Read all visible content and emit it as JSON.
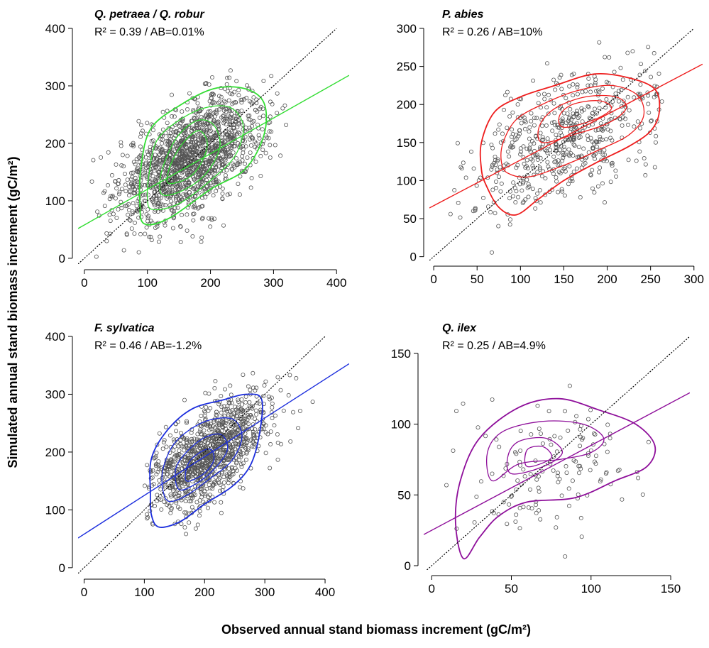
{
  "figure": {
    "xlabel": "Observed annual stand biomass increment (gC/m²)",
    "ylabel": "Simulated annual stand biomass increment (gC/m²)"
  },
  "chart_data": [
    {
      "type": "scatter",
      "title": "Q. petraea / Q. robur",
      "stat": "R² = 0.39 / AB=0.01%",
      "color": "#33dd33",
      "xlim": [
        -10,
        420
      ],
      "ylim": [
        -10,
        400
      ],
      "xticks": [
        0,
        100,
        200,
        300,
        400
      ],
      "yticks": [
        0,
        100,
        200,
        300,
        400
      ],
      "regression": {
        "slope": 0.62,
        "intercept": 58
      },
      "cloud": {
        "n": 1500,
        "cx": 170,
        "cy": 175,
        "sx": 58,
        "sy": 55,
        "rho": 0.55,
        "xmin": 10,
        "xmax": 400,
        "ymin": 0,
        "ymax": 370
      },
      "contours": [
        [
          [
            95,
            60
          ],
          [
            135,
            70
          ],
          [
            200,
            120
          ],
          [
            255,
            155
          ],
          [
            285,
            215
          ],
          [
            285,
            270
          ],
          [
            255,
            295
          ],
          [
            205,
            295
          ],
          [
            150,
            265
          ],
          [
            105,
            225
          ],
          [
            90,
            160
          ],
          [
            88,
            95
          ]
        ],
        [
          [
            108,
            85
          ],
          [
            150,
            95
          ],
          [
            205,
            140
          ],
          [
            240,
            180
          ],
          [
            252,
            230
          ],
          [
            232,
            262
          ],
          [
            192,
            262
          ],
          [
            150,
            240
          ],
          [
            115,
            205
          ],
          [
            103,
            150
          ],
          [
            100,
            105
          ]
        ],
        [
          [
            125,
            110
          ],
          [
            160,
            120
          ],
          [
            195,
            150
          ],
          [
            215,
            195
          ],
          [
            205,
            232
          ],
          [
            180,
            240
          ],
          [
            150,
            215
          ],
          [
            130,
            175
          ],
          [
            120,
            135
          ]
        ],
        [
          [
            135,
            130
          ],
          [
            165,
            140
          ],
          [
            185,
            165
          ],
          [
            195,
            200
          ],
          [
            182,
            222
          ],
          [
            160,
            205
          ],
          [
            142,
            175
          ],
          [
            132,
            145
          ]
        ]
      ]
    },
    {
      "type": "scatter",
      "title": "P. abies",
      "stat": "R² = 0.26 / AB=10%",
      "color": "#ee1c1c",
      "xlim": [
        -5,
        310
      ],
      "ylim": [
        -5,
        300
      ],
      "xticks": [
        0,
        50,
        100,
        150,
        200,
        250,
        300
      ],
      "yticks": [
        0,
        50,
        100,
        150,
        200,
        250,
        300
      ],
      "regression": {
        "slope": 0.6,
        "intercept": 67
      },
      "cloud": {
        "n": 550,
        "cx": 155,
        "cy": 155,
        "sx": 55,
        "sy": 48,
        "rho": 0.5,
        "xmin": 5,
        "xmax": 265,
        "ymin": 0,
        "ymax": 285
      },
      "contours": [
        [
          [
            60,
            95
          ],
          [
            75,
            65
          ],
          [
            95,
            55
          ],
          [
            120,
            75
          ],
          [
            150,
            100
          ],
          [
            190,
            125
          ],
          [
            225,
            145
          ],
          [
            250,
            165
          ],
          [
            260,
            190
          ],
          [
            255,
            220
          ],
          [
            225,
            235
          ],
          [
            185,
            240
          ],
          [
            140,
            225
          ],
          [
            100,
            210
          ],
          [
            70,
            190
          ],
          [
            55,
            150
          ],
          [
            55,
            115
          ]
        ],
        [
          [
            85,
            110
          ],
          [
            110,
            105
          ],
          [
            150,
            120
          ],
          [
            190,
            140
          ],
          [
            225,
            160
          ],
          [
            242,
            185
          ],
          [
            235,
            212
          ],
          [
            205,
            225
          ],
          [
            165,
            218
          ],
          [
            125,
            200
          ],
          [
            95,
            180
          ],
          [
            80,
            150
          ],
          [
            78,
            125
          ]
        ],
        [
          [
            125,
            150
          ],
          [
            160,
            160
          ],
          [
            200,
            175
          ],
          [
            222,
            195
          ],
          [
            210,
            210
          ],
          [
            175,
            210
          ],
          [
            140,
            195
          ],
          [
            122,
            172
          ]
        ],
        [
          [
            150,
            170
          ],
          [
            185,
            180
          ],
          [
            205,
            195
          ],
          [
            190,
            205
          ],
          [
            160,
            200
          ],
          [
            145,
            185
          ]
        ]
      ]
    },
    {
      "type": "scatter",
      "title": "F. sylvatica",
      "stat": "R² = 0.46 / AB=-1.2%",
      "color": "#1c2edd",
      "xlim": [
        -10,
        440
      ],
      "ylim": [
        -10,
        400
      ],
      "xticks": [
        0,
        100,
        200,
        300,
        400
      ],
      "yticks": [
        0,
        100,
        200,
        300,
        400
      ],
      "regression": {
        "slope": 0.67,
        "intercept": 58
      },
      "cloud": {
        "n": 1100,
        "cx": 205,
        "cy": 195,
        "sx": 52,
        "sy": 50,
        "rho": 0.6,
        "xmin": 100,
        "xmax": 440,
        "ymin": 5,
        "ymax": 375
      },
      "contours": [
        [
          [
            125,
            70
          ],
          [
            160,
            80
          ],
          [
            200,
            110
          ],
          [
            245,
            140
          ],
          [
            275,
            175
          ],
          [
            290,
            225
          ],
          [
            295,
            290
          ],
          [
            270,
            300
          ],
          [
            230,
            290
          ],
          [
            180,
            275
          ],
          [
            140,
            240
          ],
          [
            112,
            190
          ],
          [
            110,
            130
          ],
          [
            112,
            90
          ]
        ],
        [
          [
            140,
            115
          ],
          [
            170,
            125
          ],
          [
            210,
            155
          ],
          [
            245,
            185
          ],
          [
            262,
            225
          ],
          [
            250,
            255
          ],
          [
            220,
            258
          ],
          [
            185,
            245
          ],
          [
            150,
            215
          ],
          [
            132,
            175
          ],
          [
            130,
            140
          ]
        ],
        [
          [
            158,
            135
          ],
          [
            190,
            148
          ],
          [
            220,
            175
          ],
          [
            238,
            205
          ],
          [
            228,
            230
          ],
          [
            200,
            225
          ],
          [
            170,
            200
          ],
          [
            152,
            170
          ]
        ],
        [
          [
            170,
            150
          ],
          [
            198,
            162
          ],
          [
            215,
            185
          ],
          [
            210,
            205
          ],
          [
            190,
            198
          ],
          [
            172,
            178
          ]
        ]
      ]
    },
    {
      "type": "scatter",
      "title": "Q. ilex",
      "stat": "R² = 0.25 / AB=4.9%",
      "color": "#8e0e9a",
      "xlim": [
        -5,
        162
      ],
      "ylim": [
        -3,
        162
      ],
      "xticks": [
        0,
        50,
        100,
        150
      ],
      "yticks": [
        0,
        50,
        100,
        150
      ],
      "regression": {
        "slope": 0.6,
        "intercept": 25
      },
      "cloud": {
        "n": 135,
        "cx": 75,
        "cy": 65,
        "sx": 30,
        "sy": 25,
        "rho": 0.3,
        "xmin": 8,
        "xmax": 140,
        "ymin": 0,
        "ymax": 140
      },
      "contours": [
        [
          [
            20,
            5
          ],
          [
            30,
            20
          ],
          [
            42,
            35
          ],
          [
            60,
            45
          ],
          [
            90,
            48
          ],
          [
            115,
            60
          ],
          [
            135,
            70
          ],
          [
            140,
            85
          ],
          [
            128,
            100
          ],
          [
            105,
            110
          ],
          [
            80,
            118
          ],
          [
            55,
            112
          ],
          [
            30,
            90
          ],
          [
            18,
            60
          ],
          [
            15,
            30
          ]
        ],
        [
          [
            38,
            60
          ],
          [
            55,
            72
          ],
          [
            80,
            75
          ],
          [
            100,
            80
          ],
          [
            108,
            90
          ],
          [
            95,
            100
          ],
          [
            70,
            102
          ],
          [
            45,
            95
          ],
          [
            35,
            80
          ]
        ],
        [
          [
            50,
            65
          ],
          [
            70,
            70
          ],
          [
            82,
            80
          ],
          [
            72,
            90
          ],
          [
            55,
            88
          ],
          [
            48,
            78
          ]
        ],
        [
          [
            60,
            70
          ],
          [
            75,
            76
          ],
          [
            70,
            84
          ],
          [
            60,
            82
          ]
        ]
      ]
    }
  ]
}
